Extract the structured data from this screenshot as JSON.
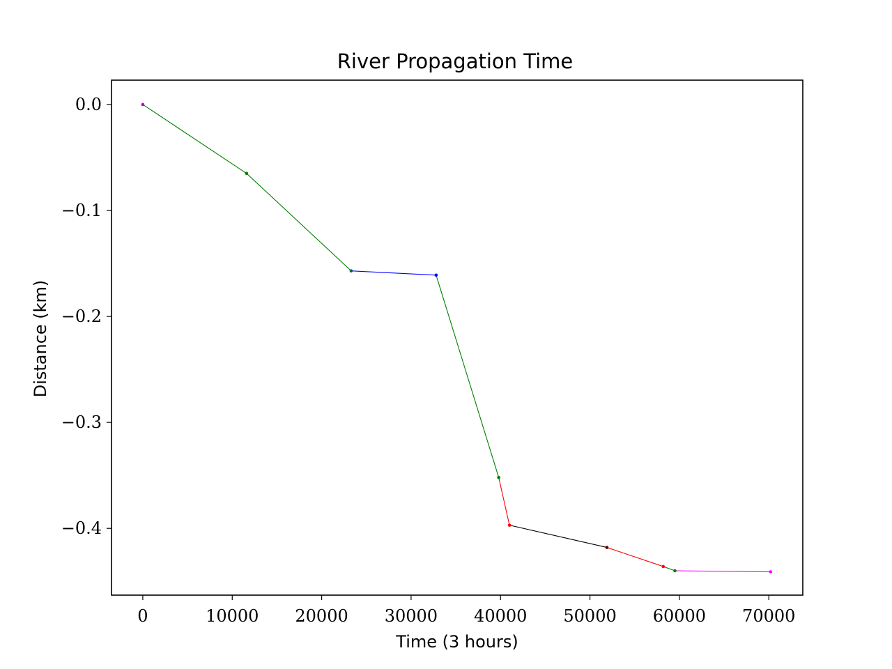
{
  "chart_data": {
    "type": "line",
    "title": "River Propagation Time",
    "xlabel": "Time (3 hours)",
    "ylabel": "Distance (km)",
    "xlim": [
      -3500,
      73800
    ],
    "ylim": [
      -0.463,
      0.023
    ],
    "xticks": [
      {
        "value": 0,
        "label": "0"
      },
      {
        "value": 10000,
        "label": "10000"
      },
      {
        "value": 20000,
        "label": "20000"
      },
      {
        "value": 30000,
        "label": "30000"
      },
      {
        "value": 40000,
        "label": "40000"
      },
      {
        "value": 50000,
        "label": "50000"
      },
      {
        "value": 60000,
        "label": "60000"
      },
      {
        "value": 70000,
        "label": "70000"
      }
    ],
    "yticks": [
      {
        "value": 0.0,
        "label": "0.0"
      },
      {
        "value": -0.1,
        "label": "−0.1"
      },
      {
        "value": -0.2,
        "label": "−0.2"
      },
      {
        "value": -0.3,
        "label": "−0.3"
      },
      {
        "value": -0.4,
        "label": "−0.4"
      }
    ],
    "grid": false,
    "segments": [
      {
        "color": "#008000",
        "points": [
          [
            0,
            0.0
          ],
          [
            11600,
            -0.065
          ],
          [
            23300,
            -0.157
          ]
        ]
      },
      {
        "color": "#0000ff",
        "points": [
          [
            23300,
            -0.157
          ],
          [
            32800,
            -0.161
          ]
        ]
      },
      {
        "color": "#008000",
        "points": [
          [
            32800,
            -0.161
          ],
          [
            39800,
            -0.352
          ]
        ]
      },
      {
        "color": "#ff0000",
        "points": [
          [
            39800,
            -0.352
          ],
          [
            41000,
            -0.397
          ]
        ]
      },
      {
        "color": "#000000",
        "points": [
          [
            41000,
            -0.397
          ],
          [
            51900,
            -0.418
          ]
        ]
      },
      {
        "color": "#ff0000",
        "points": [
          [
            51900,
            -0.418
          ],
          [
            58200,
            -0.436
          ]
        ]
      },
      {
        "color": "#008000",
        "points": [
          [
            58200,
            -0.436
          ],
          [
            59500,
            -0.44
          ]
        ]
      },
      {
        "color": "#ff00ff",
        "points": [
          [
            59500,
            -0.44
          ],
          [
            70200,
            -0.441
          ]
        ]
      }
    ],
    "points": [
      {
        "x": 0,
        "y": 0.0,
        "color": "#c000c0"
      },
      {
        "x": 11600,
        "y": -0.065,
        "color": "#008000"
      },
      {
        "x": 23300,
        "y": -0.157,
        "color": "#006060"
      },
      {
        "x": 32800,
        "y": -0.161,
        "color": "#0000ff"
      },
      {
        "x": 39800,
        "y": -0.352,
        "color": "#008000"
      },
      {
        "x": 41000,
        "y": -0.397,
        "color": "#ff0000"
      },
      {
        "x": 51900,
        "y": -0.418,
        "color": "#600000"
      },
      {
        "x": 58200,
        "y": -0.436,
        "color": "#ff0000"
      },
      {
        "x": 59500,
        "y": -0.44,
        "color": "#008000"
      },
      {
        "x": 70200,
        "y": -0.441,
        "color": "#ff00ff"
      }
    ]
  }
}
